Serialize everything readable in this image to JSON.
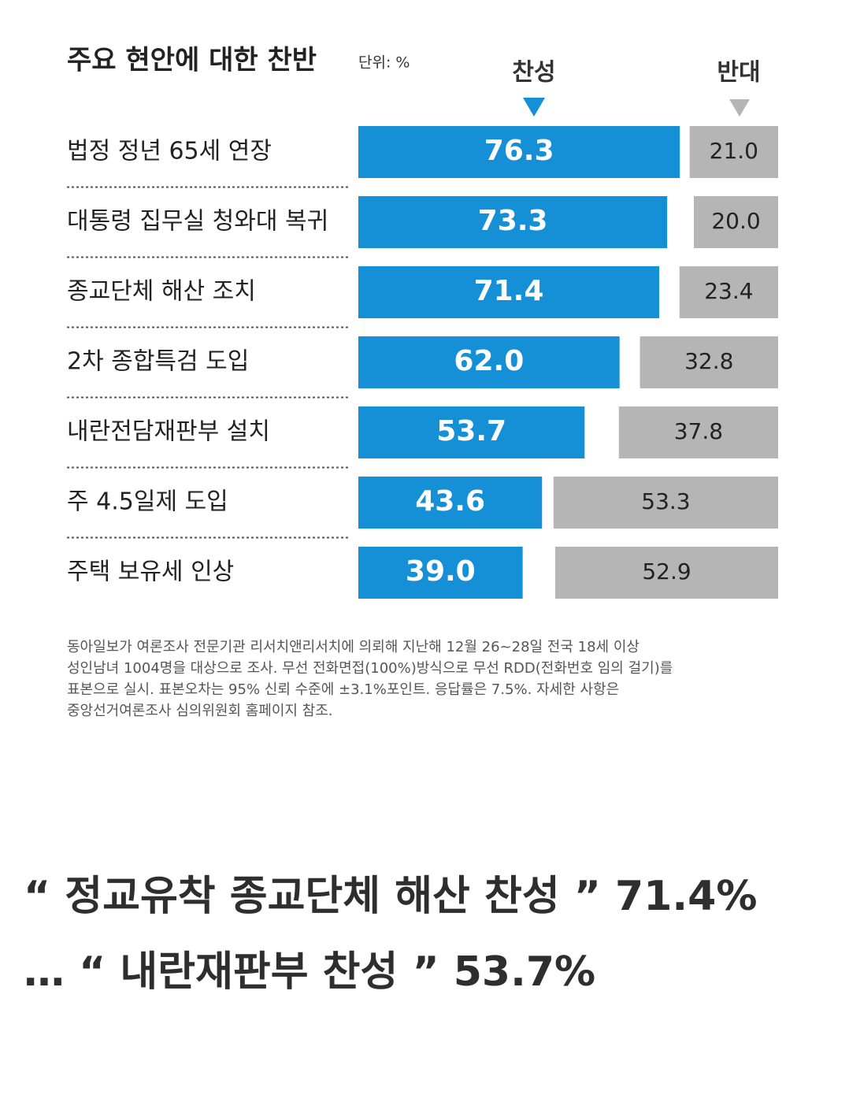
{
  "chart_data": {
    "type": "paired-bar",
    "title": "주요 현안에 대한 찬반",
    "unit": "단위: %",
    "categories": [
      "법정 정년 65세 연장",
      "대통령 집무실 청와대 복귀",
      "종교단체 해산 조치",
      "2차 종합특검 도입",
      "내란전담재판부 설치",
      "주 4.5일제 도입",
      "주택 보유세 인상"
    ],
    "series": [
      {
        "name": "찬성",
        "color": "#1590d6",
        "values": [
          76.3,
          73.3,
          71.4,
          62.0,
          53.7,
          43.6,
          39.0
        ],
        "value_labels": [
          "76.3",
          "73.3",
          "71.4",
          "62.0",
          "53.7",
          "43.6",
          "39.0"
        ]
      },
      {
        "name": "반대",
        "color": "#b5b5b5",
        "values": [
          21.0,
          20.0,
          23.4,
          32.8,
          37.8,
          53.3,
          52.9
        ],
        "value_labels": [
          "21.0",
          "20.0",
          "23.4",
          "32.8",
          "37.8",
          "53.3",
          "52.9"
        ]
      }
    ],
    "note": [
      "동아일보가 여론조사 전문기관 리서치앤리서치에 의뢰해 지난해 12월 26~28일 전국 18세 이상",
      "성인남녀 1004명을 대상으로 조사. 무선 전화면접(100%)방식으로 무선 RDD(전화번호 임의 걸기)를",
      "표본으로 실시. 표본오차는 95% 신뢰 수준에 ±3.1%포인트. 응답률은 7.5%. 자세한 사항은",
      "중앙선거여론조사 심의위원회 홈페이지 참조."
    ]
  },
  "headline": "“ 정교유착 종교단체 해산 찬성 ” 71.4% … “ 내란재판부 찬성 ” 53.7%"
}
